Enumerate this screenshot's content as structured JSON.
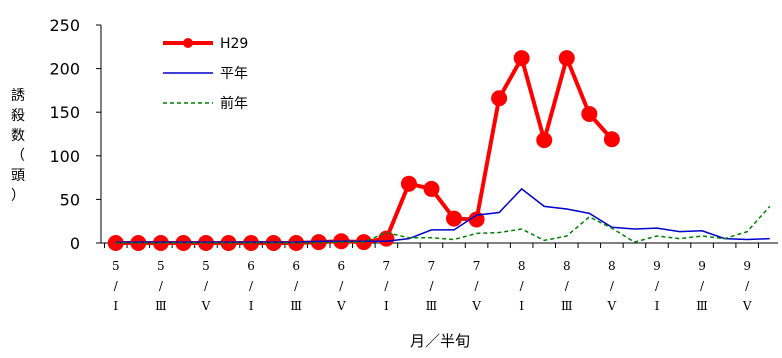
{
  "chart_data": {
    "type": "line",
    "y_label": "誘殺数（頭）",
    "x_label": "月／半旬",
    "categories": [
      "5/Ⅰ",
      null,
      "5/Ⅲ",
      null,
      "5/Ⅴ",
      null,
      "6/Ⅰ",
      null,
      "6/Ⅲ",
      null,
      "6/Ⅴ",
      null,
      "7/Ⅰ",
      null,
      "7/Ⅲ",
      null,
      "7/Ⅴ",
      null,
      "8/Ⅰ",
      null,
      "8/Ⅲ",
      null,
      "8/Ⅴ",
      null,
      "9/Ⅰ",
      null,
      "9/Ⅲ",
      null,
      "9/Ⅴ",
      null
    ],
    "series": [
      {
        "name": "H29",
        "color": "#ff0000",
        "style": "marker",
        "values": [
          0,
          0,
          0,
          0,
          0,
          0,
          0,
          0,
          0,
          1,
          2,
          1,
          5,
          68,
          62,
          28,
          27,
          166,
          212,
          118,
          212,
          148,
          119,
          null,
          null,
          null,
          null,
          null,
          null,
          null
        ]
      },
      {
        "name": "平年",
        "color": "#0000cc",
        "style": "solid",
        "values": [
          1,
          1,
          1,
          1,
          1,
          1,
          1,
          1,
          1,
          2,
          2,
          2,
          2,
          5,
          15,
          15,
          32,
          35,
          62,
          42,
          39,
          34,
          18,
          16,
          17,
          13,
          14,
          5,
          4,
          5
        ]
      },
      {
        "name": "前年",
        "color": "#008000",
        "style": "dashed",
        "values": [
          0,
          0,
          0,
          0,
          0,
          0,
          0,
          0,
          0,
          0,
          1,
          1,
          12,
          6,
          6,
          4,
          11,
          12,
          16,
          3,
          8,
          30,
          17,
          1,
          8,
          5,
          8,
          5,
          13,
          42
        ]
      }
    ],
    "ylim": [
      0,
      250
    ],
    "yticks": [
      0,
      50,
      100,
      150,
      200,
      250
    ]
  }
}
